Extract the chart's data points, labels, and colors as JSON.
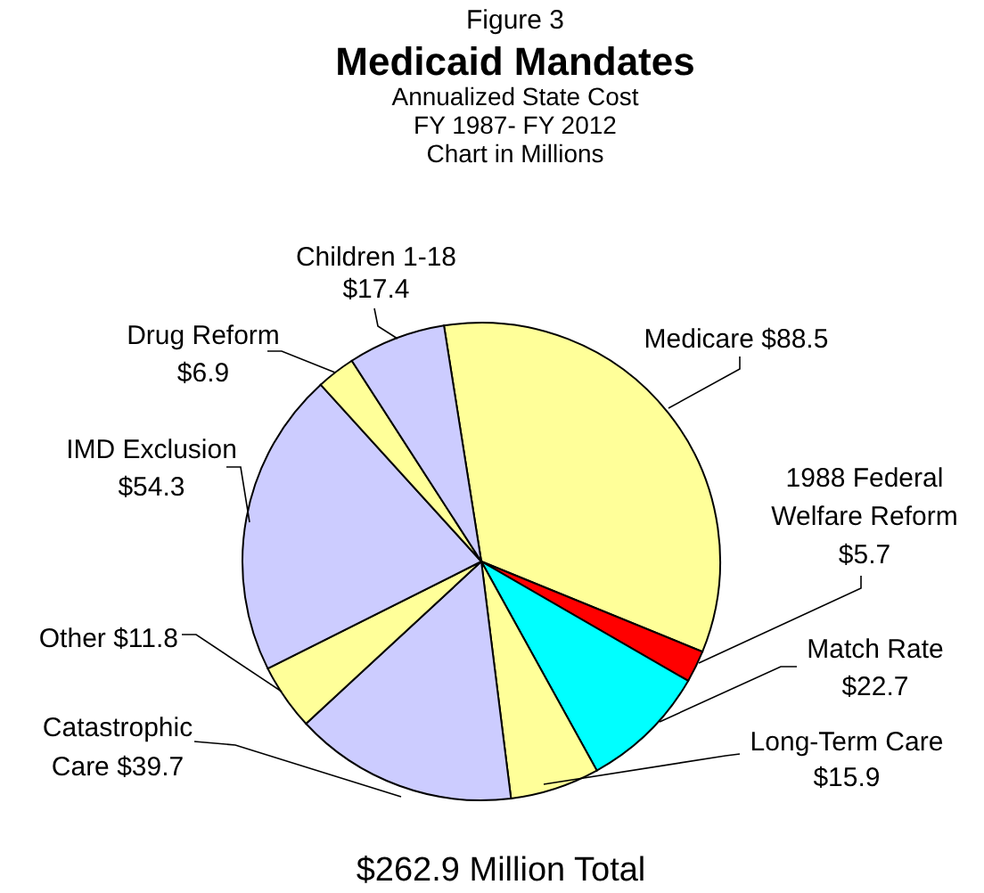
{
  "chart_data": {
    "type": "pie",
    "title": "Medicaid Mandates",
    "subtitle": "Annualized State Cost\nFY 1987- FY 2012\nChart in Millions",
    "annotations": [
      "Figure 3",
      "$262.9 Million Total"
    ],
    "categories": [
      "Medicare",
      "1988 Federal Welfare Reform",
      "Match Rate",
      "Long-Term Care",
      "Catastrophic Care",
      "Other",
      "IMD Exclusion",
      "Drug Reform",
      "Children 1-18"
    ],
    "values": [
      88.5,
      5.7,
      22.7,
      15.9,
      39.7,
      11.8,
      54.3,
      6.9,
      17.4
    ],
    "value_labels": [
      "$88.5",
      "$5.7",
      "$22.7",
      "$15.9",
      "$39.7",
      "$11.8",
      "$54.3",
      "$6.9",
      "$17.4"
    ],
    "colors": [
      "#ffff99",
      "#ff0000",
      "#00ffff",
      "#ffff99",
      "#ccccff",
      "#ffff99",
      "#ccccff",
      "#ffff99",
      "#ccccff"
    ]
  }
}
